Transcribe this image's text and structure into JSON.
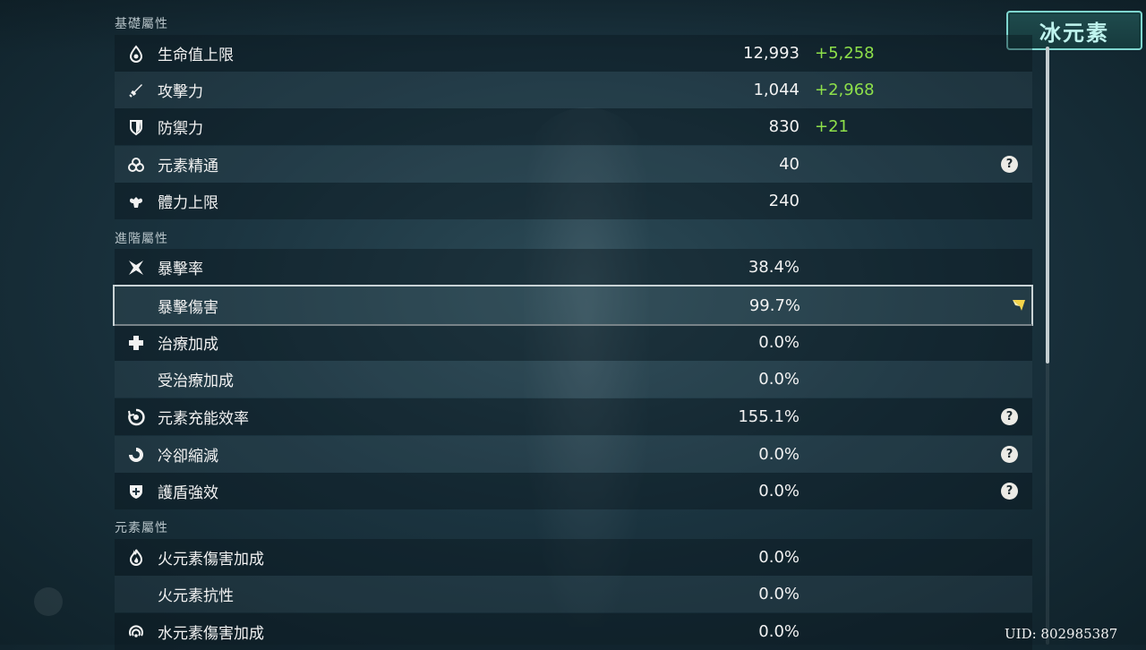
{
  "element_tag": "冰元素",
  "uid": "UID: 802985387",
  "sections": {
    "base": "基礎屬性",
    "advanced": "進階屬性",
    "elemental": "元素屬性"
  },
  "rows": [
    {
      "icon": "hp-droplet-icon",
      "label": "生命值上限",
      "value": "12,993",
      "bonus": "+5,258"
    },
    {
      "icon": "sword-icon",
      "label": "攻擊力",
      "value": "1,044",
      "bonus": "+2,968"
    },
    {
      "icon": "shield-icon",
      "label": "防禦力",
      "value": "830",
      "bonus": "+21"
    },
    {
      "icon": "elemental-mastery-icon",
      "label": "元素精通",
      "value": "40",
      "help": "?"
    },
    {
      "icon": "stamina-icon",
      "label": "體力上限",
      "value": "240"
    },
    {
      "icon": "crit-rate-icon",
      "label": "暴擊率",
      "value": "38.4%"
    },
    {
      "label": "暴擊傷害",
      "value": "99.7%"
    },
    {
      "icon": "healing-cross-icon",
      "label": "治療加成",
      "value": "0.0%"
    },
    {
      "label": "受治療加成",
      "value": "0.0%"
    },
    {
      "icon": "energy-recharge-icon",
      "label": "元素充能效率",
      "value": "155.1%",
      "help": "?"
    },
    {
      "icon": "cooldown-icon",
      "label": "冷卻縮減",
      "value": "0.0%",
      "help": "?"
    },
    {
      "icon": "shield-strength-icon",
      "label": "護盾強效",
      "value": "0.0%",
      "help": "?"
    },
    {
      "icon": "pyro-icon",
      "label": "火元素傷害加成",
      "value": "0.0%"
    },
    {
      "label": "火元素抗性",
      "value": "0.0%"
    },
    {
      "icon": "hydro-icon",
      "label": "水元素傷害加成",
      "value": "0.0%"
    }
  ]
}
